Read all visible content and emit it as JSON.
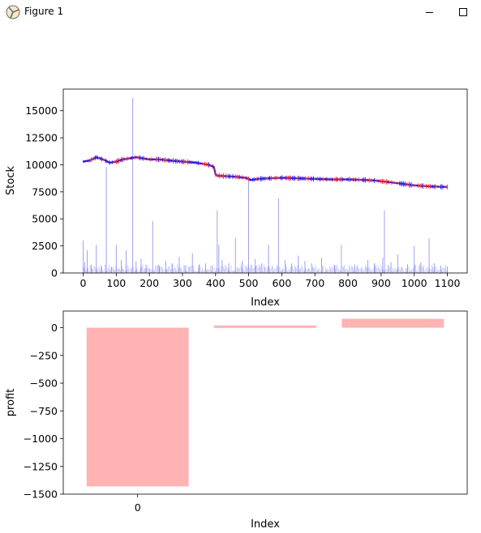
{
  "window": {
    "title": "Figure 1"
  },
  "chart_data": [
    {
      "type": "line",
      "xlabel": "Index",
      "ylabel": "Stock",
      "xlim": [
        -60,
        1160
      ],
      "ylim": [
        0,
        17000
      ],
      "xticks": [
        0,
        100,
        200,
        300,
        400,
        500,
        600,
        700,
        800,
        900,
        1000,
        1100
      ],
      "yticks": [
        0,
        2500,
        5000,
        7500,
        10000,
        12500,
        15000
      ],
      "ytick_labels": [
        "0",
        "2500",
        "5000",
        "7500",
        "10000",
        "12500",
        "15000"
      ],
      "grid": false,
      "colors": {
        "price": "#5a1fa8",
        "price_up": "#ff2a2a",
        "price_down": "#1a1aff",
        "volume": "#8888ee"
      },
      "price": {
        "x": [
          0,
          20,
          40,
          60,
          80,
          100,
          120,
          140,
          160,
          180,
          200,
          230,
          260,
          300,
          340,
          380,
          395,
          400,
          405,
          430,
          460,
          490,
          500,
          505,
          530,
          560,
          600,
          650,
          700,
          750,
          800,
          850,
          880,
          910,
          950,
          1000,
          1050,
          1100
        ],
        "y": [
          10300,
          10400,
          10700,
          10500,
          10200,
          10300,
          10500,
          10600,
          10700,
          10600,
          10500,
          10500,
          10400,
          10300,
          10200,
          10000,
          9800,
          9100,
          9000,
          8950,
          8900,
          8800,
          8700,
          8600,
          8700,
          8750,
          8800,
          8750,
          8700,
          8650,
          8650,
          8600,
          8550,
          8450,
          8300,
          8100,
          8000,
          7950
        ]
      },
      "volume_spikes": {
        "x": [
          0,
          5,
          12,
          25,
          40,
          55,
          70,
          85,
          100,
          115,
          130,
          150,
          160,
          175,
          190,
          210,
          230,
          250,
          270,
          290,
          310,
          330,
          350,
          370,
          390,
          405,
          410,
          420,
          440,
          460,
          480,
          500,
          520,
          540,
          560,
          590,
          610,
          630,
          650,
          670,
          690,
          720,
          760,
          780,
          820,
          860,
          880,
          905,
          910,
          930,
          950,
          980,
          1000,
          1020,
          1045,
          1060,
          1080,
          1100
        ],
        "y": [
          3000,
          1000,
          2100,
          800,
          2600,
          700,
          9800,
          600,
          2600,
          1200,
          2100,
          16200,
          1100,
          1300,
          800,
          4800,
          600,
          1100,
          900,
          1500,
          700,
          1800,
          800,
          900,
          700,
          5800,
          2600,
          1200,
          900,
          3200,
          1100,
          8600,
          1300,
          900,
          2600,
          6900,
          1200,
          900,
          1600,
          1100,
          900,
          1400,
          700,
          2600,
          800,
          1200,
          900,
          1400,
          5800,
          1000,
          1700,
          800,
          2500,
          1000,
          3200,
          900,
          700,
          600
        ]
      }
    },
    {
      "type": "bar",
      "xlabel": "Index",
      "ylabel": "profit",
      "categories": [
        "0",
        "",
        ""
      ],
      "tick_labels_shown": [
        "0"
      ],
      "values": [
        -1430,
        20,
        80
      ],
      "ylim": [
        -1500,
        150
      ],
      "yticks": [
        0,
        -250,
        -500,
        -750,
        -1000,
        -1250,
        -1500
      ],
      "grid": false,
      "colors": {
        "bar": "#ffb3b3"
      }
    }
  ]
}
